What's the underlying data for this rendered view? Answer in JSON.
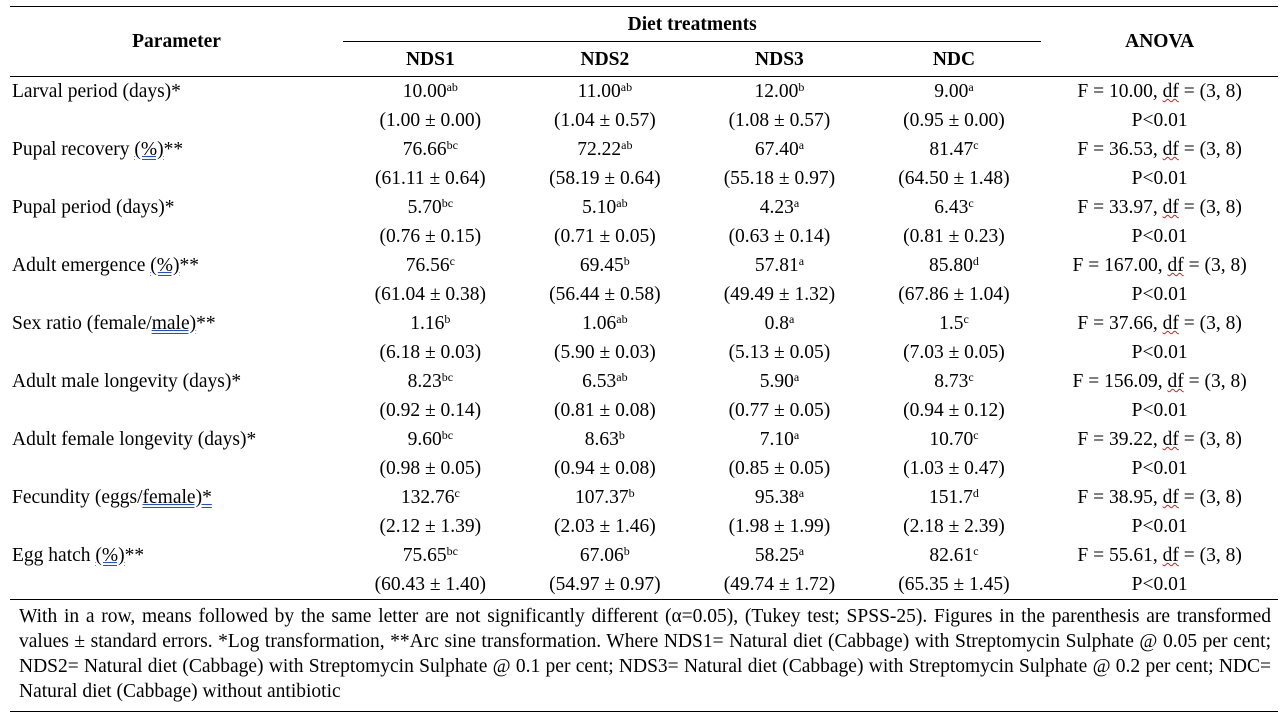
{
  "table": {
    "param_header": "Parameter",
    "group_header": "Diet treatments",
    "anova_header": "ANOVA",
    "treatments": [
      "NDS1",
      "NDS2",
      "NDS3",
      "NDC"
    ],
    "rows": [
      {
        "param": [
          "Larval period (days)*"
        ],
        "values": [
          {
            "mean": "10.00",
            "sup": "ab",
            "se": "(1.00 ± 0.00)"
          },
          {
            "mean": "11.00",
            "sup": "ab",
            "se": "(1.04 ± 0.57)"
          },
          {
            "mean": "12.00",
            "sup": "b",
            "se": "(1.08 ± 0.57)"
          },
          {
            "mean": "9.00",
            "sup": "a",
            "se": "(0.95 ± 0.00)"
          }
        ],
        "anova_f": "F = 10.00,  ",
        "anova_df": "df",
        "anova_rest": " =  (3, 8)",
        "anova_p": "P<0.01"
      },
      {
        "param": [
          "Pupal recovery ",
          "(%)",
          "**"
        ],
        "values": [
          {
            "mean": "76.66",
            "sup": "bc",
            "se": "(61.11 ± 0.64)"
          },
          {
            "mean": "72.22",
            "sup": "ab",
            "se": "(58.19 ± 0.64)"
          },
          {
            "mean": "67.40",
            "sup": "a",
            "se": "(55.18 ± 0.97)"
          },
          {
            "mean": "81.47",
            "sup": "c",
            "se": "(64.50 ± 1.48)"
          }
        ],
        "anova_f": "F = 36.53,  ",
        "anova_df": "df",
        "anova_rest": " =  (3, 8)",
        "anova_p": "P<0.01"
      },
      {
        "param": [
          "Pupal period (days)*"
        ],
        "values": [
          {
            "mean": "5.70",
            "sup": "bc",
            "se": "(0.76 ± 0.15)"
          },
          {
            "mean": "5.10",
            "sup": "ab",
            "se": "(0.71 ± 0.05)"
          },
          {
            "mean": "4.23",
            "sup": "a",
            "se": "(0.63 ± 0.14)"
          },
          {
            "mean": "6.43",
            "sup": "c",
            "se": "(0.81 ± 0.23)"
          }
        ],
        "anova_f": "F = 33.97,  ",
        "anova_df": "df",
        "anova_rest": " =  (3, 8)",
        "anova_p": "P<0.01"
      },
      {
        "param": [
          "Adult emergence ",
          "(%)",
          "**"
        ],
        "values": [
          {
            "mean": "76.56",
            "sup": "c",
            "se": "(61.04 ± 0.38)"
          },
          {
            "mean": "69.45",
            "sup": "b",
            "se": "(56.44 ± 0.58)"
          },
          {
            "mean": "57.81",
            "sup": "a",
            "se": "(49.49 ± 1.32)"
          },
          {
            "mean": "85.80",
            "sup": "d",
            "se": "(67.86 ± 1.04)"
          }
        ],
        "anova_f": "F = 167.00,  ",
        "anova_df": "df",
        "anova_rest": " =  (3, 8)",
        "anova_p": "P<0.01"
      },
      {
        "param": [
          "Sex ratio (female/",
          "male)",
          "**"
        ],
        "values": [
          {
            "mean": "1.16",
            "sup": "b",
            "se": "(6.18 ± 0.03)"
          },
          {
            "mean": "1.06",
            "sup": "ab",
            "se": "(5.90 ± 0.03)"
          },
          {
            "mean": "0.8",
            "sup": "a",
            "se": "(5.13 ± 0.05)"
          },
          {
            "mean": "1.5",
            "sup": "c",
            "se": "(7.03 ± 0.05)"
          }
        ],
        "anova_f": "F = 37.66,  ",
        "anova_df": "df",
        "anova_rest": " =  (3, 8)",
        "anova_p": "P<0.01"
      },
      {
        "param": [
          "Adult male longevity (days)*"
        ],
        "values": [
          {
            "mean": "8.23",
            "sup": "bc",
            "se": "(0.92 ± 0.14)"
          },
          {
            "mean": "6.53",
            "sup": "ab",
            "se": "(0.81 ± 0.08)"
          },
          {
            "mean": "5.90",
            "sup": "a",
            "se": "(0.77 ± 0.05)"
          },
          {
            "mean": "8.73",
            "sup": "c",
            "se": "(0.94 ± 0.12)"
          }
        ],
        "anova_f": "F = 156.09,  ",
        "anova_df": "df",
        "anova_rest": " =  (3, 8)",
        "anova_p": "P<0.01"
      },
      {
        "param": [
          "Adult female longevity (days)*"
        ],
        "values": [
          {
            "mean": "9.60",
            "sup": "bc",
            "se": "(0.98 ± 0.05)"
          },
          {
            "mean": "8.63",
            "sup": "b",
            "se": "(0.94 ± 0.08)"
          },
          {
            "mean": "7.10",
            "sup": "a",
            "se": "(0.85 ± 0.05)"
          },
          {
            "mean": "10.70",
            "sup": "c",
            "se": "(1.03 ± 0.47)"
          }
        ],
        "anova_f": "F = 39.22,  ",
        "anova_df": "df",
        "anova_rest": " =  (3, 8)",
        "anova_p": "P<0.01"
      },
      {
        "param": [
          "Fecundity (eggs/",
          "female)*",
          ""
        ],
        "values": [
          {
            "mean": "132.76",
            "sup": "c",
            "se": "(2.12 ± 1.39)"
          },
          {
            "mean": "107.37",
            "sup": "b",
            "se": "(2.03 ± 1.46)"
          },
          {
            "mean": "95.38",
            "sup": "a",
            "se": "(1.98 ± 1.99)"
          },
          {
            "mean": "151.7",
            "sup": "d",
            "se": "(2.18 ± 2.39)"
          }
        ],
        "anova_f": "F = 38.95,  ",
        "anova_df": "df",
        "anova_rest": " =  (3, 8)",
        "anova_p": "P<0.01"
      },
      {
        "param": [
          "Egg hatch ",
          "(%)",
          "**"
        ],
        "values": [
          {
            "mean": "75.65",
            "sup": "bc",
            "se": "(60.43 ± 1.40)"
          },
          {
            "mean": "67.06",
            "sup": "b",
            "se": "(54.97 ± 0.97)"
          },
          {
            "mean": "58.25",
            "sup": "a",
            "se": "(49.74 ± 1.72)"
          },
          {
            "mean": "82.61",
            "sup": "c",
            "se": "(65.35 ± 1.45)"
          }
        ],
        "anova_f": "F = 55.61,  ",
        "anova_df": "df",
        "anova_rest": " =  (3, 8)",
        "anova_p": "P<0.01"
      }
    ]
  },
  "footnote": "With in a row, means followed by the same letter are not significantly different (α=0.05), (Tukey test; SPSS-25). Figures in the parenthesis are transformed values ± standard errors. *Log transformation, **Arc sine transformation. Where NDS1= Natural diet (Cabbage) with Streptomycin Sulphate @ 0.05 per cent; NDS2= Natural diet (Cabbage) with Streptomycin Sulphate @ 0.1 per cent; NDS3= Natural diet (Cabbage) with Streptomycin Sulphate @ 0.2 per cent; NDC= Natural diet (Cabbage) without antibiotic"
}
